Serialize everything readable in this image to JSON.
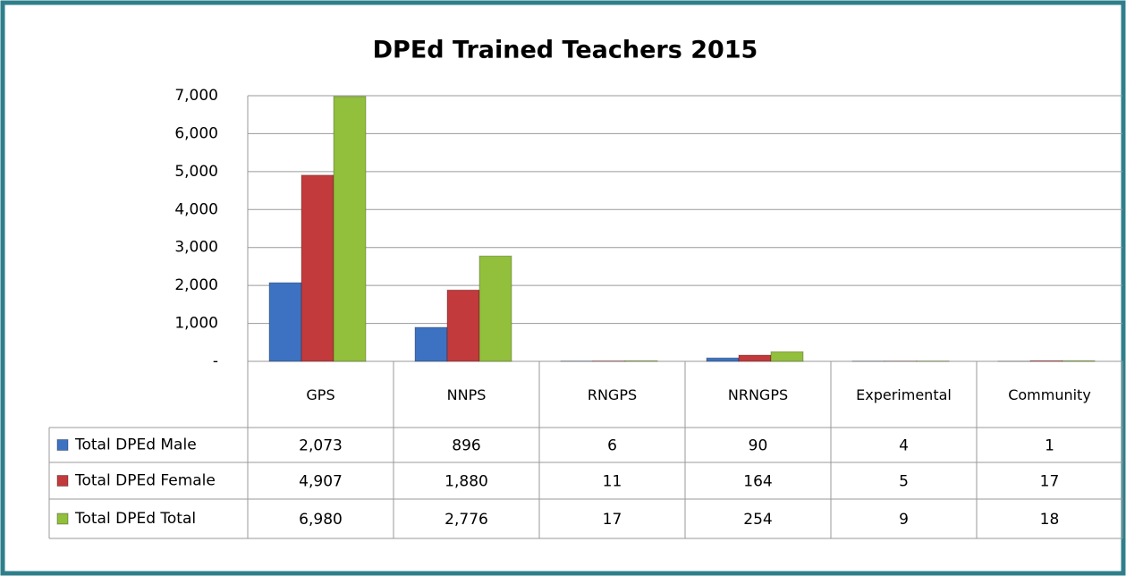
{
  "chart_data": {
    "type": "bar",
    "title": "DPEd Trained Teachers 2015",
    "categories": [
      "GPS",
      "NNPS",
      "RNGPS",
      "NRNGPS",
      "Experimental",
      "Community"
    ],
    "series": [
      {
        "name": "Total DPEd Male",
        "color": "#3d72c2",
        "values": [
          2073,
          896,
          6,
          90,
          4,
          1
        ],
        "value_labels": [
          "2,073",
          "896",
          "6",
          "90",
          "4",
          "1"
        ]
      },
      {
        "name": "Total DPEd Female",
        "color": "#c23a3c",
        "values": [
          4907,
          1880,
          11,
          164,
          5,
          17
        ],
        "value_labels": [
          "4,907",
          "1,880",
          "11",
          "164",
          "5",
          "17"
        ]
      },
      {
        "name": "Total DPEd Total",
        "color": "#92bf3c",
        "values": [
          6980,
          2776,
          17,
          254,
          9,
          18
        ],
        "value_labels": [
          "6,980",
          "2,776",
          "17",
          "254",
          "9",
          "18"
        ]
      }
    ],
    "ylim": [
      0,
      7000
    ],
    "yticks": [
      {
        "value": 0,
        "label": "-"
      },
      {
        "value": 1000,
        "label": "1,000"
      },
      {
        "value": 2000,
        "label": "2,000"
      },
      {
        "value": 3000,
        "label": "3,000"
      },
      {
        "value": 4000,
        "label": "4,000"
      },
      {
        "value": 5000,
        "label": "5,000"
      },
      {
        "value": 6000,
        "label": "6,000"
      },
      {
        "value": 7000,
        "label": "7,000"
      }
    ],
    "grid": true
  }
}
